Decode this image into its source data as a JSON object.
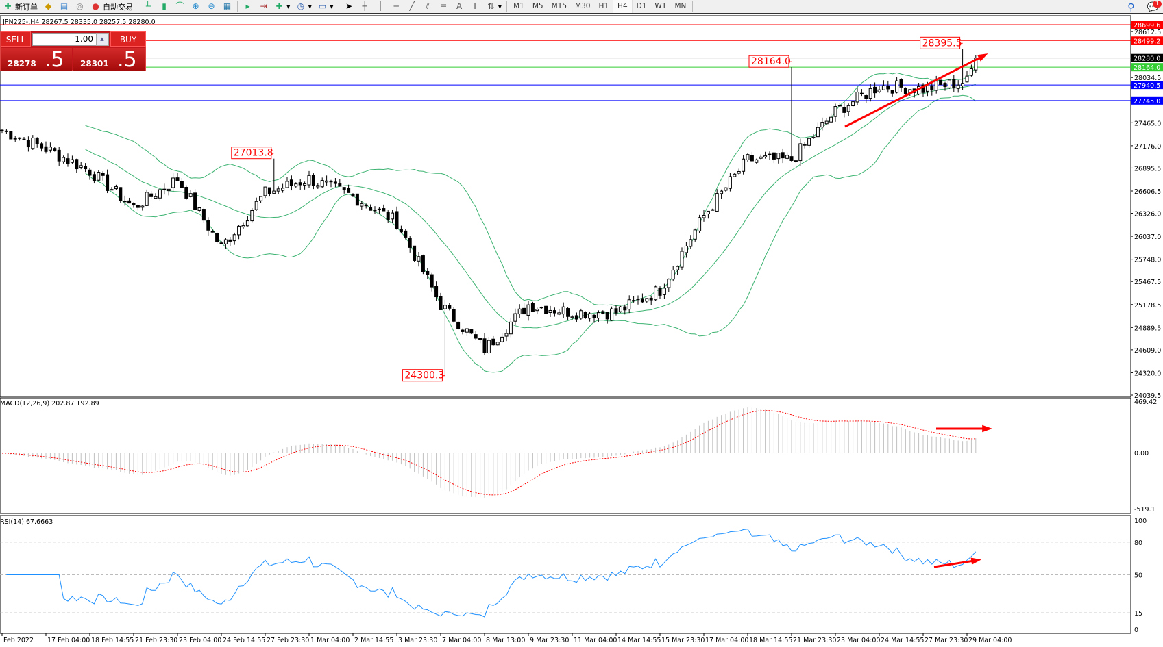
{
  "toolbar": {
    "new_order": "新订单",
    "auto_trading": "自动交易",
    "timeframes": [
      "M1",
      "M5",
      "M15",
      "M30",
      "H1",
      "H4",
      "D1",
      "W1",
      "MN"
    ],
    "active_timeframe": "H4",
    "notification_count": "1"
  },
  "chart_info": "JPN225-,H4  28267.5 28335.0 28257.5 28280.0",
  "trade_panel": {
    "sell_label": "SELL",
    "buy_label": "BUY",
    "lot": "1.00",
    "sell_price_small": "28278",
    "sell_price_big": ".5",
    "buy_price_small": "28301",
    "buy_price_big": ".5"
  },
  "price_axis": {
    "ticks": [
      "28612.5",
      "28034.5",
      "27465.0",
      "27176.0",
      "26895.5",
      "26606.5",
      "26326.0",
      "26037.0",
      "25748.0",
      "25467.5",
      "25178.5",
      "24889.5",
      "24609.0",
      "24320.0",
      "24039.5"
    ],
    "levels": [
      {
        "label": "28699.6",
        "price": 28699.6,
        "color": "#ff0000"
      },
      {
        "label": "28499.2",
        "price": 28499.2,
        "color": "#ff0000"
      },
      {
        "label": "28280.0",
        "price": 28280.0,
        "color": "#c0c0c0",
        "tag_color": "#000000"
      },
      {
        "label": "28164.0",
        "price": 28164.0,
        "color": "#32cd32"
      },
      {
        "label": "27940.5",
        "price": 27940.5,
        "color": "#0000ff"
      },
      {
        "label": "27745.0",
        "price": 27745.0,
        "color": "#0000ff"
      }
    ]
  },
  "annotations": [
    {
      "label": "27013.8",
      "price": 27013.8,
      "bar": 62
    },
    {
      "label": "24300.3",
      "price": 24300.3,
      "bar": 101
    },
    {
      "label": "28164.0",
      "price": 28164.0,
      "bar": 180
    },
    {
      "label": "28395.5",
      "price": 28395.5,
      "bar": 219
    }
  ],
  "time_axis": [
    "Feb 2022",
    "17 Feb 04:00",
    "18 Feb 14:55",
    "21 Feb 23:30",
    "23 Feb 04:00",
    "24 Feb 14:55",
    "27 Feb 23:30",
    "1 Mar 04:00",
    "2 Mar 14:55",
    "3 Mar 23:30",
    "7 Mar 04:00",
    "8 Mar 13:00",
    "9 Mar 23:30",
    "11 Mar 04:00",
    "14 Mar 14:55",
    "15 Mar 23:30",
    "17 Mar 04:00",
    "18 Mar 14:55",
    "21 Mar 23:30",
    "23 Mar 04:00",
    "24 Mar 14:55",
    "27 Mar 23:30",
    "29 Mar 04:00"
  ],
  "macd": {
    "label": "MACD(12,26,9) 202.87 192.89",
    "max": "469.42",
    "zero": "0.00",
    "min": "-519.1"
  },
  "rsi": {
    "label": "RSI(14) 67.6663",
    "levels": [
      "100",
      "80",
      "50",
      "15",
      "0"
    ]
  },
  "chart_data": {
    "type": "candlestick",
    "symbol": "JPN225-",
    "timeframe": "H4",
    "approx_close_at_time_labels": [
      27373,
      27140,
      26860,
      26400,
      26760,
      25900,
      26580,
      26760,
      26540,
      26220,
      25176,
      24615,
      25176,
      25080,
      25080,
      25365,
      26296,
      27000,
      27000,
      27605,
      27930,
      27890,
      27985
    ],
    "last_close": 28280.0,
    "indicators": [
      "Bollinger Bands",
      "MACD(12,26,9)",
      "RSI(14)"
    ],
    "colors": {
      "bands": "#3cb371",
      "macd_signal": "#ff0000",
      "macd_hist": "#c0c0c0",
      "rsi": "#1e90ff",
      "arrow": "#ff0000"
    }
  }
}
